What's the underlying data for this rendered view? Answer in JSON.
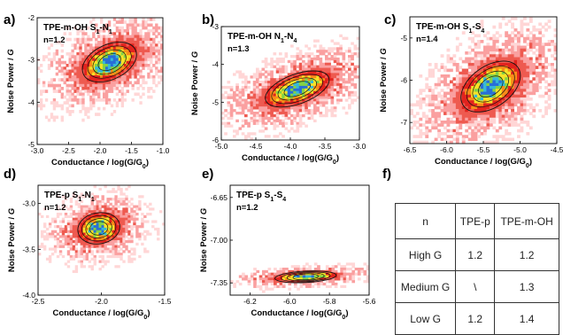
{
  "chart_data": [
    {
      "id": "a",
      "panel_label": "a)",
      "type": "heatmap",
      "title_main": "TPE-m-OH S",
      "title_sub1": "1",
      "title_mid": "-N",
      "title_sub2": "1",
      "n_label": "n=1.2",
      "xlabel": "Conductance / log(G/G",
      "xlabel_sub": "0",
      "xlabel_end": ")",
      "ylabel_main": "Noise Power / ",
      "ylabel_var": "G",
      "xlim": [
        -3.0,
        -1.0
      ],
      "ylim": [
        -5,
        -2
      ],
      "xticks": [
        -3.0,
        -2.5,
        -2.0,
        -1.5,
        -1.0
      ],
      "xtick_labels": [
        "-3.0",
        "-2.5",
        "-2.0",
        "-1.5",
        "-1.0"
      ],
      "yticks": [
        -5,
        -4,
        -3,
        -2
      ],
      "ytick_labels": [
        "-5",
        "-4",
        "-3",
        "-2"
      ],
      "center": [
        -1.85,
        -3.05
      ],
      "spread": [
        0.28,
        0.32
      ],
      "tilt_deg": 25
    },
    {
      "id": "b",
      "panel_label": "b)",
      "type": "heatmap",
      "title_main": "TPE-m-OH N",
      "title_sub1": "1",
      "title_mid": "-N",
      "title_sub2": "4",
      "n_label": "n=1.3",
      "xlabel": "Conductance / log(G/G",
      "xlabel_sub": "0",
      "xlabel_end": ")",
      "ylabel_main": "Noise Power / ",
      "ylabel_var": "G",
      "xlim": [
        -5.0,
        -3.0
      ],
      "ylim": [
        -6,
        -3
      ],
      "xticks": [
        -5.0,
        -4.5,
        -4.0,
        -3.5,
        -3.0
      ],
      "xtick_labels": [
        "-5.0",
        "-4.5",
        "-4.0",
        "-3.5",
        "-3.0"
      ],
      "yticks": [
        -6,
        -5,
        -4,
        -3
      ],
      "ytick_labels": [
        "-6",
        "-5",
        "-4",
        "-3"
      ],
      "center": [
        -3.9,
        -4.65
      ],
      "spread": [
        0.3,
        0.3
      ],
      "tilt_deg": 20
    },
    {
      "id": "c",
      "panel_label": "c)",
      "type": "heatmap",
      "title_main": "TPE-m-OH S",
      "title_sub1": "1",
      "title_mid": "-S",
      "title_sub2": "4",
      "n_label": "n=1.4",
      "xlabel": "Conductance / log(G/G",
      "xlabel_sub": "0",
      "xlabel_end": ")",
      "ylabel_main": "Noise Power / ",
      "ylabel_var": "G",
      "xlim": [
        -6.5,
        -4.5
      ],
      "ylim": [
        -7.5,
        -4.5
      ],
      "xticks": [
        -6.5,
        -6.0,
        -5.5,
        -5.0,
        -4.5
      ],
      "xtick_labels": [
        "-6.5",
        "-6.0",
        "-5.5",
        "-5.0",
        "-4.5"
      ],
      "yticks": [
        -7,
        -6,
        -5
      ],
      "ytick_labels": [
        "-7",
        "-6",
        "-5"
      ],
      "center": [
        -5.4,
        -6.15
      ],
      "spread": [
        0.28,
        0.38
      ],
      "tilt_deg": 35
    },
    {
      "id": "d",
      "panel_label": "d)",
      "type": "heatmap",
      "title_main": "TPE-p S",
      "title_sub1": "1",
      "title_mid": "-N",
      "title_sub2": "1",
      "n_label": "n=1.2",
      "xlabel": "Conductance / log(G/G",
      "xlabel_sub": "0",
      "xlabel_end": ")",
      "ylabel_main": "Noise Power / ",
      "ylabel_var": "G",
      "xlim": [
        -2.5,
        -1.5
      ],
      "ylim": [
        -4.0,
        -2.8
      ],
      "xticks": [
        -2.5,
        -2.0,
        -1.5
      ],
      "xtick_labels": [
        "-2.5",
        "-2.0",
        "-1.5"
      ],
      "yticks": [
        -4.0,
        -3.5,
        -3.0
      ],
      "ytick_labels": [
        "-4.0",
        "-3.5",
        "-3.0"
      ],
      "center": [
        -2.02,
        -3.27
      ],
      "spread": [
        0.1,
        0.13
      ],
      "tilt_deg": 10
    },
    {
      "id": "e",
      "panel_label": "e)",
      "type": "heatmap",
      "title_main": "TPE-p S",
      "title_sub1": "1",
      "title_mid": "-S",
      "title_sub2": "4",
      "n_label": "n=1.2",
      "xlabel": "Conductance / log(G/G",
      "xlabel_sub": "0",
      "xlabel_end": ")",
      "ylabel_main": "Noise Power / ",
      "ylabel_var": "G",
      "xlim": [
        -6.3,
        -5.6
      ],
      "ylim": [
        -7.45,
        -6.55
      ],
      "xticks": [
        -6.2,
        -6.0,
        -5.8,
        -5.6
      ],
      "xtick_labels": [
        "-6.2",
        "-6.0",
        "-5.8",
        "-5.6"
      ],
      "yticks": [
        -7.35,
        -7.0,
        -6.65
      ],
      "ytick_labels": [
        "-7.35",
        "-7.00",
        "-6.65"
      ],
      "center": [
        -5.92,
        -7.3
      ],
      "spread": [
        0.095,
        0.03
      ],
      "tilt_deg": 3
    },
    {
      "id": "f",
      "panel_label": "f)",
      "type": "table",
      "columns": [
        "n",
        "TPE-p",
        "TPE-m-OH"
      ],
      "rows": [
        [
          "High G",
          "1.2",
          "1.2"
        ],
        [
          "Medium G",
          "\\",
          "1.3"
        ],
        [
          "Low G",
          "1.2",
          "1.4"
        ]
      ]
    }
  ]
}
